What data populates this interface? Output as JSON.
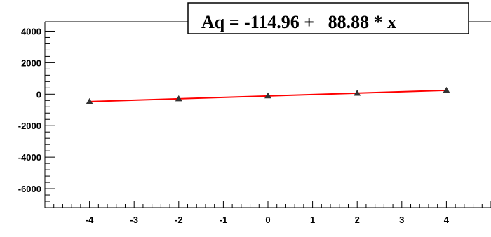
{
  "chart_data": {
    "type": "scatter",
    "title": "Aq = -114.96 +   88.88 * x",
    "xlabel": "",
    "ylabel": "",
    "xlim": [
      -5,
      5
    ],
    "ylim": [
      -7200,
      4600
    ],
    "x_ticks": [
      -4,
      -3,
      -2,
      -1,
      0,
      1,
      2,
      3,
      4
    ],
    "y_ticks": [
      -6000,
      -4000,
      -2000,
      0,
      2000,
      4000
    ],
    "grid": false,
    "series": [
      {
        "marker": "triangle",
        "marker_color": "#333333",
        "x": [
          -4,
          -2,
          0,
          2,
          4
        ],
        "y": [
          -470,
          -290,
          -110,
          60,
          240
        ]
      }
    ],
    "fit": {
      "type": "line",
      "intercept": -114.96,
      "slope": 88.88,
      "x_range": [
        -4,
        4
      ],
      "color": "#ff0000"
    }
  }
}
